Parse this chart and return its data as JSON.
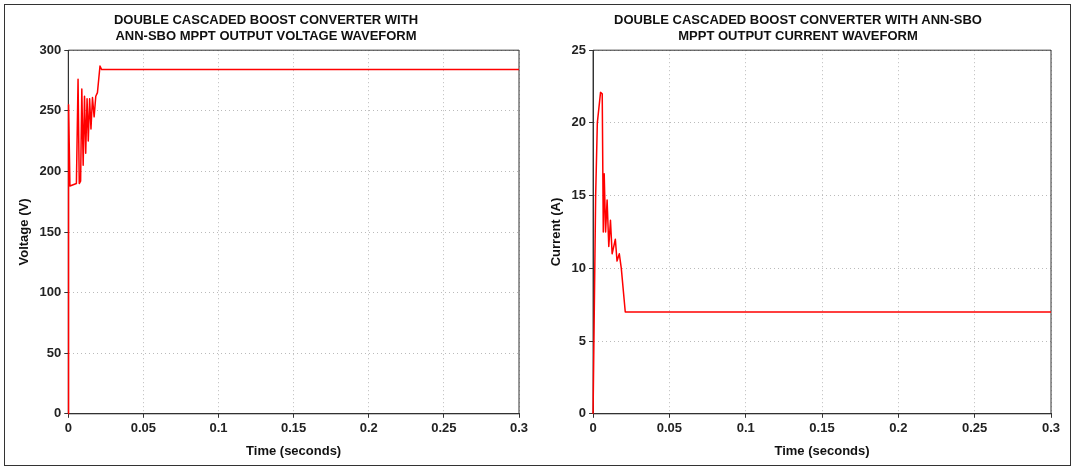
{
  "chart_data": [
    {
      "type": "line",
      "title": "DOUBLE CASCADED BOOST CONVERTER WITH\nANN-SBO MPPT OUTPUT VOLTAGE WAVEFORM",
      "xlabel": "Time (seconds)",
      "ylabel": "Voltage (V)",
      "series": [
        {
          "color": "#ff0000",
          "x": [
            0,
            0.0002,
            0.0011,
            0.0054,
            0.0065,
            0.0073,
            0.0082,
            0.009,
            0.0099,
            0.0108,
            0.0116,
            0.0125,
            0.0133,
            0.0142,
            0.0151,
            0.0161,
            0.0172,
            0.0183,
            0.0194,
            0.0211,
            0.0222,
            0.3
          ],
          "values": [
            0,
            255,
            188,
            190,
            276,
            190,
            192,
            268,
            205,
            262,
            215,
            260,
            225,
            260,
            235,
            261,
            245,
            262,
            265,
            287,
            284,
            284
          ]
        }
      ],
      "xlim": [
        0,
        0.3
      ],
      "xticks": [
        0,
        0.05,
        0.1,
        0.15,
        0.2,
        0.25,
        0.3
      ],
      "ylim": [
        0,
        300
      ],
      "yticks": [
        0,
        50,
        100,
        150,
        200,
        250,
        300
      ],
      "grid": true,
      "line_style": "solid",
      "marker": "none"
    },
    {
      "type": "line",
      "title": "DOUBLE CASCADED BOOST CONVERTER WITH ANN-SBO\nMPPT OUTPUT CURRENT WAVEFORM",
      "xlabel": "Time (seconds)",
      "ylabel": "Current (A)",
      "series": [
        {
          "color": "#ff0000",
          "x": [
            0,
            0.0017,
            0.0028,
            0.0049,
            0.006,
            0.0067,
            0.0073,
            0.0082,
            0.0092,
            0.0103,
            0.0114,
            0.0125,
            0.0146,
            0.0157,
            0.0172,
            0.0185,
            0.0211,
            0.3
          ],
          "values": [
            0,
            15,
            20,
            22.1,
            22,
            12.5,
            16.5,
            12.5,
            14.7,
            11.5,
            13.3,
            11,
            12,
            10.5,
            11,
            10,
            7,
            7
          ]
        }
      ],
      "xlim": [
        0,
        0.3
      ],
      "xticks": [
        0,
        0.05,
        0.1,
        0.15,
        0.2,
        0.25,
        0.3
      ],
      "ylim": [
        0,
        25
      ],
      "yticks": [
        0,
        5,
        10,
        15,
        20,
        25
      ],
      "grid": true,
      "line_style": "solid",
      "marker": "none"
    }
  ]
}
